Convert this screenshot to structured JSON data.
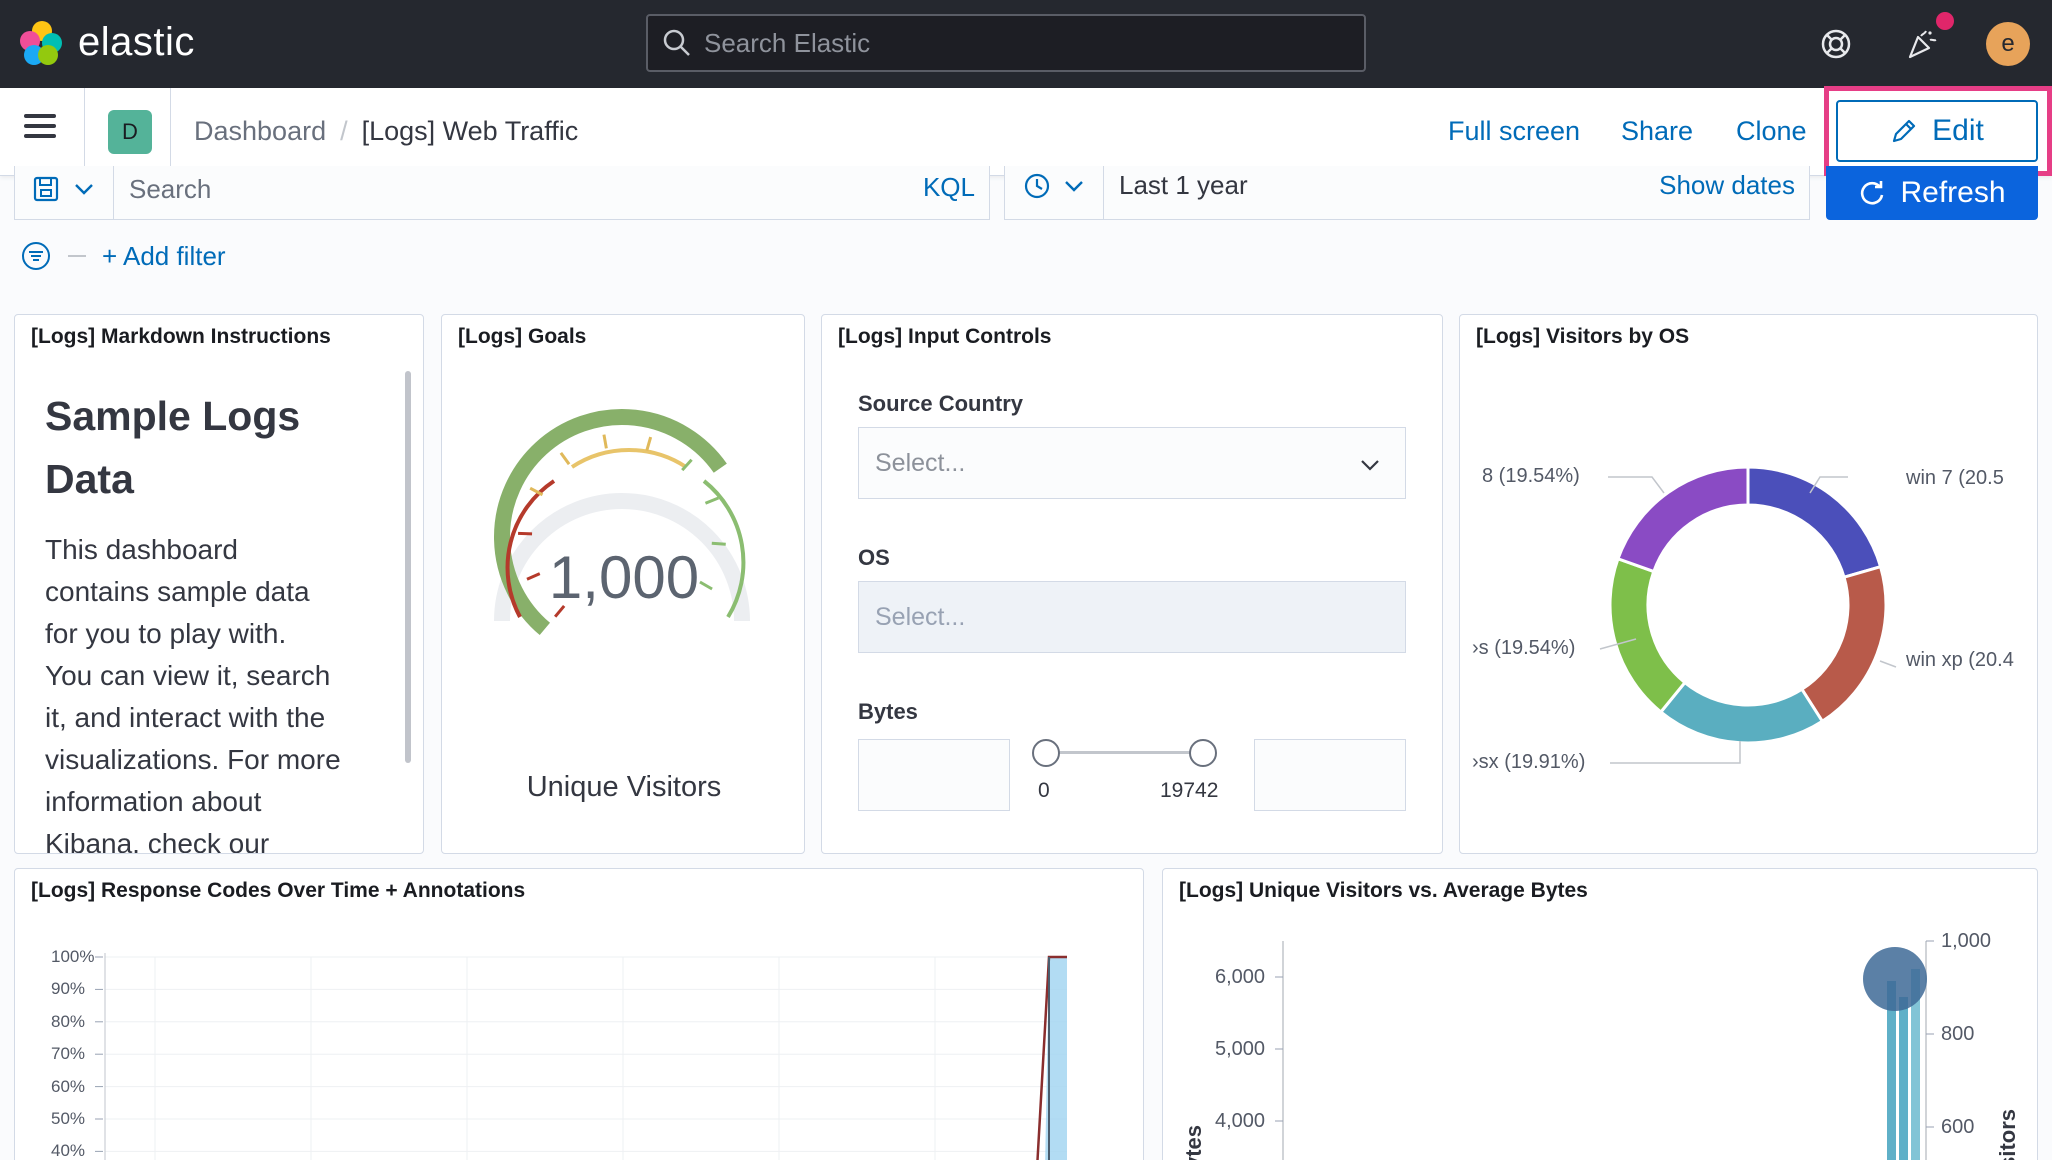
{
  "header": {
    "brand": "elastic",
    "search_placeholder": "Search Elastic",
    "user_initial": "e"
  },
  "nav": {
    "space_initial": "D",
    "breadcrumbs": [
      "Dashboard",
      "[Logs] Web Traffic"
    ],
    "actions": {
      "full_screen": "Full screen",
      "share": "Share",
      "clone": "Clone",
      "edit": "Edit"
    }
  },
  "query_bar": {
    "search_placeholder": "Search",
    "language": "KQL",
    "time_range": "Last 1 year",
    "show_dates": "Show dates",
    "refresh": "Refresh",
    "add_filter": "+ Add filter"
  },
  "panels": {
    "markdown": {
      "title": "[Logs] Markdown Instructions",
      "heading_line1": "Sample Logs",
      "heading_line2": "Data",
      "lines": [
        "This dashboard",
        "contains sample data",
        "for you to play with.",
        "You can view it, search",
        "it, and interact with the",
        "visualizations. For more",
        "information about",
        "Kibana, check our"
      ]
    },
    "goals": {
      "title": "[Logs] Goals",
      "value": "1,000",
      "label": "Unique Visitors",
      "fill_fraction": 0.75
    },
    "input_controls": {
      "title": "[Logs] Input Controls",
      "source_country_label": "Source Country",
      "source_country_placeholder": "Select...",
      "os_label": "OS",
      "os_placeholder": "Select...",
      "bytes_label": "Bytes",
      "bytes_min": "0",
      "bytes_max": "19742"
    },
    "visitors_by_os": {
      "title": "[Logs] Visitors by OS",
      "labels": {
        "win8": "8 (19.54%)",
        "win7": "win 7 (20.5",
        "ios": "›s (19.54%)",
        "winxp": "win xp (20.4",
        "osx": "›sx (19.91%)"
      },
      "colors": {
        "win7": "#4b4fba",
        "winxp": "#b85a4a",
        "osx": "#5aaec0",
        "ios": "#7ebf4a",
        "win8": "#8a4bc4"
      }
    },
    "response_codes": {
      "title": "[Logs] Response Codes Over Time + Annotations"
    },
    "unique_vs_bytes": {
      "title": "[Logs] Unique Visitors vs. Average Bytes",
      "left_axis_title": "ytes",
      "right_axis_title": "isitors"
    }
  },
  "chart_data": [
    {
      "type": "area",
      "title": "[Logs] Response Codes Over Time + Annotations",
      "y_ticks": [
        "100%",
        "90%",
        "80%",
        "70%",
        "60%",
        "50%",
        "40%"
      ],
      "ylim": [
        40,
        100
      ]
    },
    {
      "type": "bar",
      "title": "[Logs] Unique Visitors vs. Average Bytes",
      "left_ticks": [
        "6,000",
        "5,000",
        "4,000"
      ],
      "right_ticks": [
        "1,000",
        "800",
        "600"
      ]
    }
  ]
}
